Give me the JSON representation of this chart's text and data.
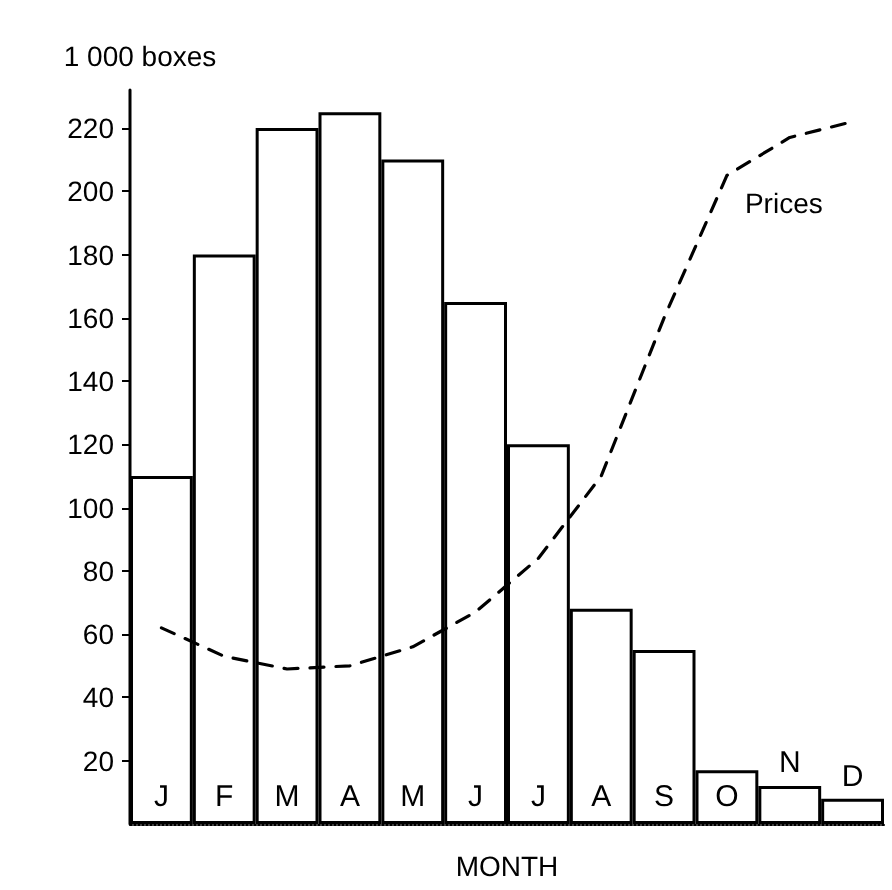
{
  "chart_data": {
    "type": "bar",
    "xlabel": "MONTH",
    "ylabel": "1 000 boxes",
    "categories": [
      "J",
      "F",
      "M",
      "A",
      "M",
      "J",
      "J",
      "A",
      "S",
      "O",
      "N",
      "D"
    ],
    "series": [
      {
        "color": "#000000",
        "values": [
          110,
          180,
          220,
          225,
          210,
          165,
          120,
          68,
          55,
          17,
          12,
          8
        ]
      },
      {
        "type": "line",
        "name": "Prices",
        "color": "#000000",
        "line_style": "dashed",
        "marker": "none",
        "values": [
          62,
          53,
          49,
          50,
          56,
          67,
          84,
          110,
          160,
          205,
          217,
          222
        ]
      }
    ],
    "ylim": [
      0,
      232
    ],
    "yticks": [
      20,
      40,
      60,
      80,
      100,
      120,
      140,
      160,
      180,
      200,
      220
    ],
    "grid": false,
    "legend": false
  }
}
